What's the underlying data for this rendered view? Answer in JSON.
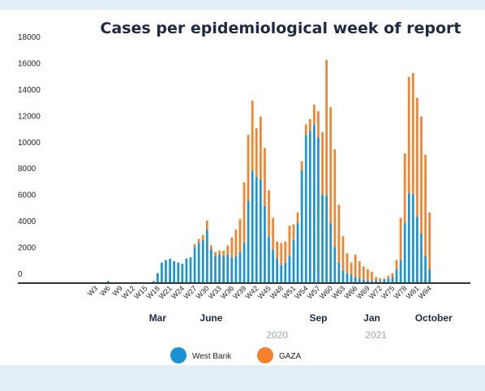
{
  "chart_data": {
    "type": "bar",
    "stacked": true,
    "title": "Cases per epidemiological week of report",
    "xlabel": "",
    "ylabel": "",
    "ylim": [
      0,
      18000
    ],
    "yticks": [
      "0",
      "2000",
      "4000",
      "6000",
      "8000",
      "10000",
      "12000",
      "14000",
      "16000",
      "18000"
    ],
    "categories": [
      "W1",
      "W2",
      "W3",
      "W4",
      "W5",
      "W6",
      "W7",
      "W8",
      "W9",
      "W10",
      "W11",
      "W12",
      "W13",
      "W14",
      "W15",
      "W16",
      "W17",
      "W18",
      "W19",
      "W20",
      "W21",
      "W22",
      "W23",
      "W24",
      "W25",
      "W26",
      "W27",
      "W28",
      "W29",
      "W30",
      "W31",
      "W32",
      "W33",
      "W34",
      "W35",
      "W36",
      "W37",
      "W38",
      "W39",
      "W40",
      "W41",
      "W42",
      "W43",
      "W44",
      "W45",
      "W46",
      "W47",
      "W48",
      "W49",
      "W50",
      "W51",
      "W52",
      "W53",
      "W54",
      "W55",
      "W56",
      "W57",
      "W58",
      "W59",
      "W60",
      "W61",
      "W62",
      "W63",
      "W64",
      "W65",
      "W66",
      "W67",
      "W68",
      "W69",
      "W70",
      "W71",
      "W72",
      "W73",
      "W74",
      "W75",
      "W76",
      "W77",
      "W78",
      "W79",
      "W80",
      "W81",
      "W82",
      "W83",
      "W84"
    ],
    "xtick_labels": [
      "W3",
      "W6",
      "W9",
      "W12",
      "W15",
      "W18",
      "W21",
      "W24",
      "W27",
      "W30",
      "W33",
      "W36",
      "W39",
      "W42",
      "W45",
      "W48",
      "W51",
      "W54",
      "W57",
      "W60",
      "W63",
      "W66",
      "W69",
      "W72",
      "W75",
      "W78",
      "W81",
      "W84"
    ],
    "series": [
      {
        "name": "West Bank",
        "color": "#1a93d4",
        "values": [
          0,
          0,
          0,
          0,
          0,
          100,
          0,
          0,
          0,
          0,
          0,
          0,
          0,
          0,
          0,
          0,
          100,
          700,
          1500,
          1700,
          1800,
          1600,
          1500,
          1400,
          1800,
          1900,
          2700,
          3000,
          3200,
          4000,
          2500,
          2000,
          2100,
          2000,
          2100,
          1900,
          2000,
          2300,
          3000,
          6200,
          8500,
          8000,
          7800,
          5800,
          3500,
          2500,
          1800,
          1300,
          1500,
          2000,
          3200,
          4500,
          8500,
          11200,
          11500,
          12000,
          11000,
          6700,
          6600,
          4500,
          2700,
          1500,
          900,
          700,
          600,
          400,
          300,
          200,
          150,
          100,
          150,
          100,
          200,
          300,
          400,
          1000,
          1700,
          4500,
          6800,
          6700,
          5000,
          3700,
          2000,
          1000
        ]
      },
      {
        "name": "GAZA",
        "color": "#f5812a",
        "values": [
          0,
          0,
          0,
          0,
          0,
          0,
          0,
          0,
          0,
          0,
          0,
          0,
          0,
          0,
          0,
          0,
          0,
          0,
          0,
          0,
          0,
          0,
          0,
          0,
          0,
          0,
          200,
          300,
          400,
          700,
          300,
          300,
          300,
          400,
          700,
          1500,
          2000,
          2500,
          4600,
          5000,
          5300,
          3700,
          4800,
          4400,
          3500,
          2400,
          1300,
          1700,
          1600,
          2300,
          1200,
          800,
          700,
          800,
          900,
          1500,
          2000,
          4700,
          10300,
          8800,
          7400,
          4400,
          2600,
          1500,
          900,
          1700,
          1300,
          1000,
          850,
          700,
          250,
          200,
          100,
          200,
          300,
          700,
          3200,
          5300,
          8800,
          9200,
          9000,
          8900,
          7700,
          4300
        ]
      }
    ],
    "months": [
      {
        "label": "Mar",
        "week": 18
      },
      {
        "label": "June",
        "week": 31
      },
      {
        "label": "Sep",
        "week": 57
      },
      {
        "label": "Jan",
        "week": 70
      },
      {
        "label": "October",
        "week": 85
      }
    ],
    "years": [
      {
        "label": "2020",
        "week": 47
      },
      {
        "label": "2021",
        "week": 71
      }
    ],
    "legend": {
      "placement": "bottom-center",
      "items": [
        {
          "label": "West Bank",
          "color": "#1a93d4"
        },
        {
          "label": "GAZA",
          "color": "#f5812a"
        }
      ]
    },
    "grid": false
  }
}
